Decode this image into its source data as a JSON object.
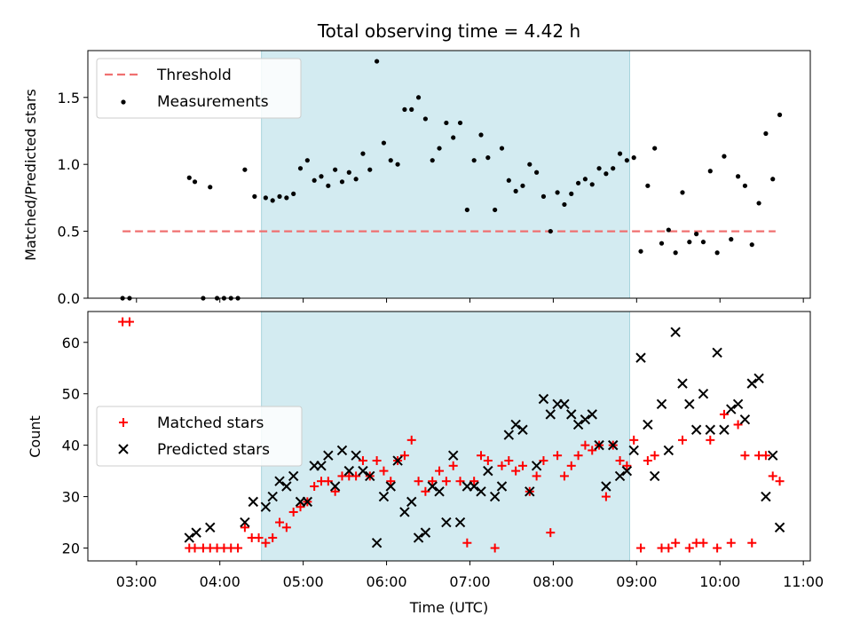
{
  "title": "Total observing time = 4.42 h",
  "colors": {
    "threshold": "#f07070",
    "measurement": "#000000",
    "matched": "#ff0000",
    "predicted": "#000000",
    "shade": "#d3ebf1"
  },
  "chart_data": [
    {
      "type": "scatter",
      "panel": "top",
      "ylabel": "Matched/Predicted stars",
      "ylim": [
        0,
        1.85
      ],
      "yticks": [
        {
          "v": 0.0,
          "label": "0.0"
        },
        {
          "v": 0.5,
          "label": "0.5"
        },
        {
          "v": 1.0,
          "label": "1.0"
        },
        {
          "v": 1.5,
          "label": "1.5"
        }
      ],
      "xlim": [
        "02:25",
        "11:05"
      ],
      "shaded_region": [
        "04:30",
        "08:55"
      ],
      "legend": {
        "position": "upper-left",
        "threshold_label": "Threshold",
        "measurements_label": "Measurements"
      },
      "threshold": {
        "value": 0.5,
        "x_range": [
          "02:50",
          "10:40"
        ]
      },
      "measurements": [
        [
          "02:50",
          0
        ],
        [
          "02:55",
          0
        ],
        [
          "03:38",
          0.9
        ],
        [
          "03:42",
          0.87
        ],
        [
          "03:48",
          0
        ],
        [
          "03:53",
          0.83
        ],
        [
          "03:58",
          0
        ],
        [
          "04:03",
          0
        ],
        [
          "04:08",
          0
        ],
        [
          "04:13",
          0
        ],
        [
          "04:18",
          0.96
        ],
        [
          "04:25",
          0.76
        ],
        [
          "04:33",
          0.75
        ],
        [
          "04:38",
          0.73
        ],
        [
          "04:43",
          0.76
        ],
        [
          "04:48",
          0.75
        ],
        [
          "04:53",
          0.78
        ],
        [
          "04:58",
          0.97
        ],
        [
          "05:03",
          1.03
        ],
        [
          "05:08",
          0.88
        ],
        [
          "05:13",
          0.91
        ],
        [
          "05:18",
          0.84
        ],
        [
          "05:23",
          0.96
        ],
        [
          "05:28",
          0.87
        ],
        [
          "05:33",
          0.94
        ],
        [
          "05:38",
          0.89
        ],
        [
          "05:43",
          1.08
        ],
        [
          "05:48",
          0.96
        ],
        [
          "05:53",
          1.77
        ],
        [
          "05:58",
          1.16
        ],
        [
          "06:03",
          1.03
        ],
        [
          "06:08",
          1.0
        ],
        [
          "06:13",
          1.41
        ],
        [
          "06:18",
          1.41
        ],
        [
          "06:23",
          1.5
        ],
        [
          "06:28",
          1.34
        ],
        [
          "06:33",
          1.03
        ],
        [
          "06:38",
          1.12
        ],
        [
          "06:43",
          1.31
        ],
        [
          "06:48",
          1.2
        ],
        [
          "06:53",
          1.31
        ],
        [
          "06:58",
          0.66
        ],
        [
          "07:03",
          1.03
        ],
        [
          "07:08",
          1.22
        ],
        [
          "07:13",
          1.05
        ],
        [
          "07:18",
          0.66
        ],
        [
          "07:23",
          1.12
        ],
        [
          "07:28",
          0.88
        ],
        [
          "07:33",
          0.8
        ],
        [
          "07:38",
          0.84
        ],
        [
          "07:43",
          1.0
        ],
        [
          "07:48",
          0.94
        ],
        [
          "07:53",
          0.76
        ],
        [
          "07:58",
          0.5
        ],
        [
          "08:03",
          0.79
        ],
        [
          "08:08",
          0.7
        ],
        [
          "08:13",
          0.78
        ],
        [
          "08:18",
          0.86
        ],
        [
          "08:23",
          0.89
        ],
        [
          "08:28",
          0.85
        ],
        [
          "08:33",
          0.97
        ],
        [
          "08:38",
          0.93
        ],
        [
          "08:43",
          0.97
        ],
        [
          "08:48",
          1.08
        ],
        [
          "08:53",
          1.03
        ],
        [
          "08:58",
          1.05
        ],
        [
          "09:03",
          0.35
        ],
        [
          "09:08",
          0.84
        ],
        [
          "09:13",
          1.12
        ],
        [
          "09:18",
          0.41
        ],
        [
          "09:23",
          0.51
        ],
        [
          "09:28",
          0.34
        ],
        [
          "09:33",
          0.79
        ],
        [
          "09:38",
          0.42
        ],
        [
          "09:43",
          0.48
        ],
        [
          "09:48",
          0.42
        ],
        [
          "09:53",
          0.95
        ],
        [
          "09:58",
          0.34
        ],
        [
          "10:03",
          1.06
        ],
        [
          "10:08",
          0.44
        ],
        [
          "10:13",
          0.91
        ],
        [
          "10:18",
          0.84
        ],
        [
          "10:23",
          0.4
        ],
        [
          "10:28",
          0.71
        ],
        [
          "10:33",
          1.23
        ],
        [
          "10:38",
          0.89
        ],
        [
          "10:43",
          1.37
        ]
      ]
    },
    {
      "type": "scatter",
      "panel": "bottom",
      "xlabel": "Time (UTC)",
      "ylabel": "Count",
      "ylim": [
        17.5,
        66
      ],
      "yticks": [
        {
          "v": 20,
          "label": "20"
        },
        {
          "v": 30,
          "label": "30"
        },
        {
          "v": 40,
          "label": "40"
        },
        {
          "v": 50,
          "label": "50"
        },
        {
          "v": 60,
          "label": "60"
        }
      ],
      "xlim": [
        "02:25",
        "11:05"
      ],
      "xticks": [
        "03:00",
        "04:00",
        "05:00",
        "06:00",
        "07:00",
        "08:00",
        "09:00",
        "10:00",
        "11:00"
      ],
      "shaded_region": [
        "04:30",
        "08:55"
      ],
      "legend": {
        "position": "center-left",
        "matched_label": "Matched stars",
        "predicted_label": "Predicted stars"
      },
      "matched": [
        [
          "02:50",
          64
        ],
        [
          "02:55",
          64
        ],
        [
          "03:38",
          20
        ],
        [
          "03:42",
          20
        ],
        [
          "03:48",
          20
        ],
        [
          "03:53",
          20
        ],
        [
          "03:58",
          20
        ],
        [
          "04:03",
          20
        ],
        [
          "04:08",
          20
        ],
        [
          "04:13",
          20
        ],
        [
          "04:18",
          24
        ],
        [
          "04:23",
          22
        ],
        [
          "04:28",
          22
        ],
        [
          "04:33",
          21
        ],
        [
          "04:38",
          22
        ],
        [
          "04:43",
          25
        ],
        [
          "04:48",
          24
        ],
        [
          "04:53",
          27
        ],
        [
          "04:58",
          28
        ],
        [
          "05:03",
          29
        ],
        [
          "05:08",
          32
        ],
        [
          "05:13",
          33
        ],
        [
          "05:18",
          33
        ],
        [
          "05:23",
          31
        ],
        [
          "05:28",
          34
        ],
        [
          "05:33",
          34
        ],
        [
          "05:38",
          34
        ],
        [
          "05:43",
          37
        ],
        [
          "05:48",
          34
        ],
        [
          "05:53",
          37
        ],
        [
          "05:58",
          35
        ],
        [
          "06:03",
          33
        ],
        [
          "06:08",
          37
        ],
        [
          "06:13",
          38
        ],
        [
          "06:18",
          41
        ],
        [
          "06:23",
          33
        ],
        [
          "06:28",
          31
        ],
        [
          "06:33",
          33
        ],
        [
          "06:38",
          35
        ],
        [
          "06:43",
          33
        ],
        [
          "06:48",
          36
        ],
        [
          "06:53",
          33
        ],
        [
          "06:58",
          21
        ],
        [
          "07:03",
          33
        ],
        [
          "07:08",
          38
        ],
        [
          "07:13",
          37
        ],
        [
          "07:18",
          20
        ],
        [
          "07:23",
          36
        ],
        [
          "07:28",
          37
        ],
        [
          "07:33",
          35
        ],
        [
          "07:38",
          36
        ],
        [
          "07:43",
          31
        ],
        [
          "07:48",
          34
        ],
        [
          "07:53",
          37
        ],
        [
          "07:58",
          23
        ],
        [
          "08:03",
          38
        ],
        [
          "08:08",
          34
        ],
        [
          "08:13",
          36
        ],
        [
          "08:18",
          38
        ],
        [
          "08:23",
          40
        ],
        [
          "08:28",
          39
        ],
        [
          "08:33",
          40
        ],
        [
          "08:38",
          30
        ],
        [
          "08:43",
          40
        ],
        [
          "08:48",
          37
        ],
        [
          "08:53",
          36
        ],
        [
          "08:58",
          41
        ],
        [
          "09:03",
          20
        ],
        [
          "09:08",
          37
        ],
        [
          "09:13",
          38
        ],
        [
          "09:18",
          20
        ],
        [
          "09:23",
          20
        ],
        [
          "09:28",
          21
        ],
        [
          "09:33",
          41
        ],
        [
          "09:38",
          20
        ],
        [
          "09:43",
          21
        ],
        [
          "09:48",
          21
        ],
        [
          "09:53",
          41
        ],
        [
          "09:58",
          20
        ],
        [
          "10:03",
          46
        ],
        [
          "10:08",
          21
        ],
        [
          "10:13",
          44
        ],
        [
          "10:18",
          38
        ],
        [
          "10:23",
          21
        ],
        [
          "10:28",
          38
        ],
        [
          "10:33",
          38
        ],
        [
          "10:38",
          34
        ],
        [
          "10:43",
          33
        ]
      ],
      "predicted": [
        [
          "03:38",
          22
        ],
        [
          "03:43",
          23
        ],
        [
          "03:53",
          24
        ],
        [
          "04:18",
          25
        ],
        [
          "04:24",
          29
        ],
        [
          "04:33",
          28
        ],
        [
          "04:38",
          30
        ],
        [
          "04:43",
          33
        ],
        [
          "04:48",
          32
        ],
        [
          "04:53",
          34
        ],
        [
          "04:58",
          29
        ],
        [
          "05:03",
          29
        ],
        [
          "05:08",
          36
        ],
        [
          "05:13",
          36
        ],
        [
          "05:18",
          38
        ],
        [
          "05:23",
          32
        ],
        [
          "05:28",
          39
        ],
        [
          "05:33",
          35
        ],
        [
          "05:38",
          38
        ],
        [
          "05:43",
          35
        ],
        [
          "05:48",
          34
        ],
        [
          "05:53",
          21
        ],
        [
          "05:58",
          30
        ],
        [
          "06:03",
          32
        ],
        [
          "06:08",
          37
        ],
        [
          "06:13",
          27
        ],
        [
          "06:18",
          29
        ],
        [
          "06:23",
          22
        ],
        [
          "06:28",
          23
        ],
        [
          "06:33",
          32
        ],
        [
          "06:38",
          31
        ],
        [
          "06:43",
          25
        ],
        [
          "06:48",
          38
        ],
        [
          "06:53",
          25
        ],
        [
          "06:58",
          32
        ],
        [
          "07:03",
          32
        ],
        [
          "07:08",
          31
        ],
        [
          "07:13",
          35
        ],
        [
          "07:18",
          30
        ],
        [
          "07:23",
          32
        ],
        [
          "07:28",
          42
        ],
        [
          "07:33",
          44
        ],
        [
          "07:38",
          43
        ],
        [
          "07:43",
          31
        ],
        [
          "07:48",
          36
        ],
        [
          "07:53",
          49
        ],
        [
          "07:58",
          46
        ],
        [
          "08:03",
          48
        ],
        [
          "08:08",
          48
        ],
        [
          "08:13",
          46
        ],
        [
          "08:18",
          44
        ],
        [
          "08:23",
          45
        ],
        [
          "08:28",
          46
        ],
        [
          "08:33",
          40
        ],
        [
          "08:38",
          32
        ],
        [
          "08:43",
          40
        ],
        [
          "08:48",
          34
        ],
        [
          "08:53",
          35
        ],
        [
          "08:58",
          39
        ],
        [
          "09:03",
          57
        ],
        [
          "09:08",
          44
        ],
        [
          "09:13",
          34
        ],
        [
          "09:18",
          48
        ],
        [
          "09:23",
          39
        ],
        [
          "09:28",
          62
        ],
        [
          "09:33",
          52
        ],
        [
          "09:38",
          48
        ],
        [
          "09:43",
          43
        ],
        [
          "09:48",
          50
        ],
        [
          "09:53",
          43
        ],
        [
          "09:58",
          58
        ],
        [
          "10:03",
          43
        ],
        [
          "10:08",
          47
        ],
        [
          "10:13",
          48
        ],
        [
          "10:18",
          45
        ],
        [
          "10:23",
          52
        ],
        [
          "10:28",
          53
        ],
        [
          "10:33",
          30
        ],
        [
          "10:38",
          38
        ],
        [
          "10:43",
          24
        ]
      ]
    }
  ]
}
